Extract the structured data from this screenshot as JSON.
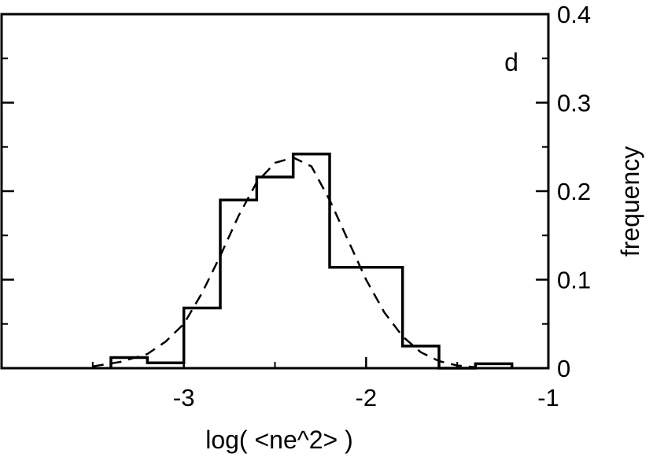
{
  "chart_data": {
    "type": "bar",
    "xlabel": "log( <ne^2> )",
    "ylabel": "frequency",
    "panel_label": "d",
    "xlim": [
      -4.0,
      -1.0
    ],
    "ylim": [
      0,
      0.4
    ],
    "x_ticks": [
      -3,
      -2,
      -1
    ],
    "x_tick_labels": [
      "-3",
      "-2",
      "-1"
    ],
    "y_ticks": [
      0,
      0.1,
      0.2,
      0.3,
      0.4
    ],
    "y_tick_labels": [
      "0",
      "0.1",
      "0.2",
      "0.3",
      "0.4"
    ],
    "y_axis_side": "right",
    "grid": false,
    "histogram": {
      "bin_edges": [
        -3.4,
        -3.2,
        -3.0,
        -2.8,
        -2.6,
        -2.4,
        -2.2,
        -2.0,
        -1.8,
        -1.6,
        -1.4,
        -1.2
      ],
      "values": [
        0.012,
        0.006,
        0.068,
        0.19,
        0.216,
        0.242,
        0.114,
        0.114,
        0.025,
        0.0,
        0.005
      ]
    },
    "series": [
      {
        "style": "dashed",
        "x": [
          -3.5,
          -3.35,
          -3.2,
          -3.1,
          -3.0,
          -2.9,
          -2.8,
          -2.7,
          -2.6,
          -2.5,
          -2.4,
          -2.3,
          -2.2,
          -2.1,
          -2.0,
          -1.9,
          -1.8,
          -1.7,
          -1.6,
          -1.5,
          -1.4
        ],
        "y": [
          0.002,
          0.007,
          0.016,
          0.03,
          0.05,
          0.085,
          0.127,
          0.172,
          0.21,
          0.232,
          0.238,
          0.228,
          0.19,
          0.145,
          0.1,
          0.063,
          0.036,
          0.018,
          0.008,
          0.003,
          0.001
        ]
      }
    ]
  }
}
